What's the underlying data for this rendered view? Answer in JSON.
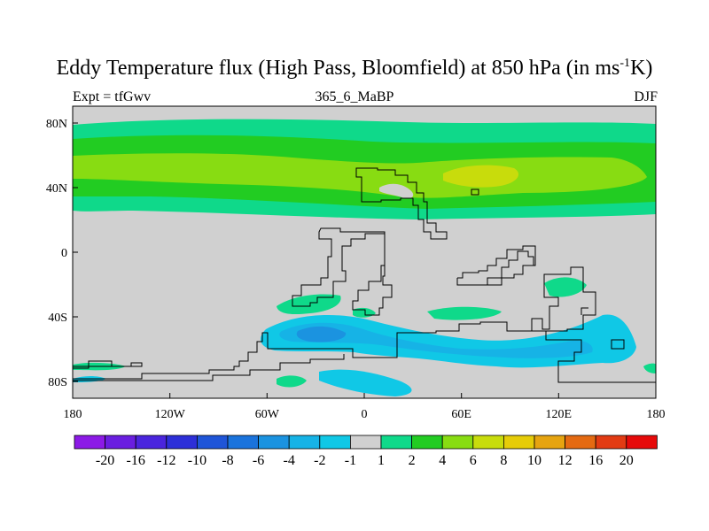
{
  "title": {
    "main": "Eddy Temperature flux (High Pass, Bloomfield) at 850 hPa (in ms",
    "superscript": "-1",
    "suffix": "K)"
  },
  "subtitle_left": "Expt = tfGwv",
  "subtitle_center": "365_6_MaBP",
  "subtitle_right": "DJF",
  "axes": {
    "x_ticks": [
      "180",
      "120W",
      "60W",
      "0",
      "60E",
      "120E",
      "180"
    ],
    "y_ticks": [
      "80N",
      "40N",
      "0",
      "40S",
      "80S"
    ]
  },
  "colorbar": {
    "labels": [
      "-20",
      "-16",
      "-12",
      "-10",
      "-8",
      "-6",
      "-4",
      "-2",
      "-1",
      "1",
      "2",
      "4",
      "6",
      "8",
      "10",
      "12",
      "16",
      "20"
    ],
    "colors": [
      "#8c1ae6",
      "#6a1ee0",
      "#4a25dd",
      "#2d2fd8",
      "#1f55d8",
      "#1a73dc",
      "#1b93e0",
      "#16b3e6",
      "#10c8e6",
      "#d0d0d0",
      "#0fd98a",
      "#22cc22",
      "#88dc12",
      "#c8dc0c",
      "#e6cc08",
      "#e6a410",
      "#e46a12",
      "#e23b13",
      "#e60a0a"
    ]
  },
  "map_colors": {
    "background": "#d0d0d0",
    "pos1": "#0fd98a",
    "pos2": "#22cc22",
    "pos3": "#88dc12",
    "pos4": "#c8dc0c",
    "neg1": "#10c8e6",
    "neg2": "#16b3e6",
    "neg3": "#1b93e0"
  }
}
